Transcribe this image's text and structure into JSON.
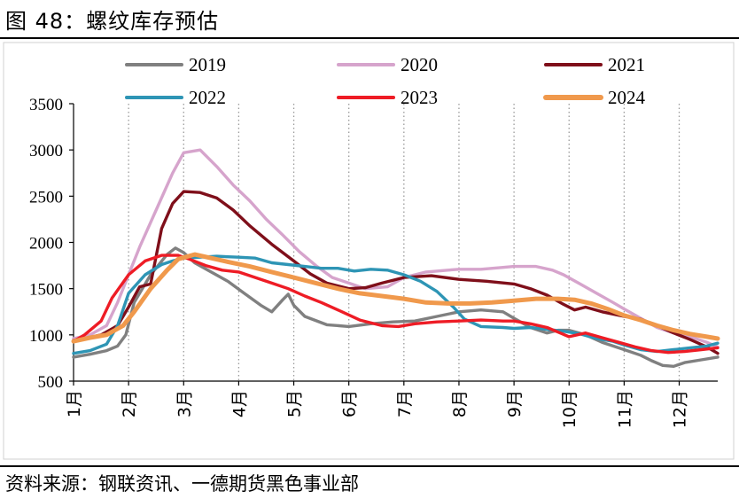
{
  "header": {
    "title": "图 48：螺纹库存预估"
  },
  "footer": {
    "source": "资料来源：钢联资讯、一德期货黑色事业部"
  },
  "chart_data": {
    "type": "line",
    "title": "螺纹库存预估",
    "xlabel": "",
    "ylabel": "",
    "ylim": [
      500,
      3500
    ],
    "yticks": [
      500,
      1000,
      1500,
      2000,
      2500,
      3000,
      3500
    ],
    "xlim": [
      1,
      12.7
    ],
    "xticks": [
      1,
      2,
      3,
      4,
      5,
      6,
      7,
      8,
      9,
      10,
      11,
      12
    ],
    "month_labels": [
      "1月",
      "2月",
      "3月",
      "4月",
      "5月",
      "6月",
      "7月",
      "8月",
      "9月",
      "10月",
      "11月",
      "12月"
    ],
    "grid": "vertical-dotted",
    "legend": "top",
    "series": [
      {
        "name": "2019",
        "color": "#808080",
        "x": [
          1.0,
          1.3,
          1.6,
          1.8,
          1.95,
          2.1,
          2.4,
          2.7,
          2.85,
          3.0,
          3.2,
          3.5,
          3.8,
          4.1,
          4.4,
          4.6,
          4.8,
          4.9,
          5.0,
          5.2,
          5.6,
          6.0,
          6.4,
          6.8,
          7.2,
          7.6,
          8.0,
          8.4,
          8.8,
          9.0,
          9.3,
          9.6,
          9.8,
          10.0,
          10.3,
          10.6,
          11.0,
          11.3,
          11.5,
          11.7,
          11.9,
          12.1,
          12.4,
          12.7
        ],
        "y": [
          760,
          790,
          830,
          880,
          1000,
          1350,
          1650,
          1870,
          1940,
          1890,
          1780,
          1680,
          1580,
          1450,
          1320,
          1250,
          1380,
          1440,
          1320,
          1200,
          1110,
          1090,
          1120,
          1140,
          1150,
          1200,
          1250,
          1270,
          1250,
          1180,
          1080,
          1020,
          1050,
          1050,
          1000,
          920,
          840,
          780,
          720,
          670,
          660,
          700,
          730,
          760
        ]
      },
      {
        "name": "2020",
        "color": "#d6a4cc",
        "x": [
          1.0,
          1.3,
          1.6,
          1.8,
          2.0,
          2.2,
          2.5,
          2.8,
          3.0,
          3.3,
          3.6,
          3.9,
          4.2,
          4.5,
          4.8,
          5.1,
          5.4,
          5.7,
          6.0,
          6.3,
          6.7,
          7.0,
          7.4,
          7.8,
          8.0,
          8.4,
          8.8,
          9.0,
          9.4,
          9.7,
          9.9,
          10.2,
          10.5,
          10.8,
          11.0,
          11.3,
          11.6,
          11.9,
          12.2,
          12.5,
          12.7
        ],
        "y": [
          960,
          1000,
          1100,
          1350,
          1650,
          1950,
          2350,
          2750,
          2970,
          3000,
          2820,
          2620,
          2450,
          2250,
          2080,
          1900,
          1750,
          1620,
          1560,
          1500,
          1520,
          1620,
          1680,
          1700,
          1710,
          1710,
          1730,
          1740,
          1740,
          1700,
          1650,
          1550,
          1450,
          1350,
          1280,
          1180,
          1080,
          1020,
          980,
          920,
          870
        ]
      },
      {
        "name": "2021",
        "color": "#7f0f1a",
        "x": [
          1.0,
          1.2,
          1.5,
          1.8,
          2.0,
          2.2,
          2.4,
          2.6,
          2.8,
          3.0,
          3.3,
          3.6,
          3.9,
          4.2,
          4.6,
          5.0,
          5.3,
          5.6,
          6.0,
          6.3,
          6.6,
          7.0,
          7.5,
          8.0,
          8.5,
          9.0,
          9.3,
          9.6,
          9.9,
          10.1,
          10.3,
          10.6,
          11.0,
          11.3,
          11.6,
          11.9,
          12.2,
          12.5,
          12.7
        ],
        "y": [
          940,
          960,
          1000,
          1100,
          1300,
          1520,
          1550,
          2150,
          2420,
          2550,
          2540,
          2480,
          2350,
          2180,
          1980,
          1800,
          1660,
          1560,
          1500,
          1510,
          1560,
          1620,
          1640,
          1600,
          1580,
          1550,
          1500,
          1430,
          1330,
          1270,
          1300,
          1250,
          1200,
          1170,
          1100,
          1020,
          950,
          870,
          800
        ]
      },
      {
        "name": "2022",
        "color": "#2e95b5",
        "x": [
          1.0,
          1.3,
          1.6,
          1.8,
          2.0,
          2.3,
          2.6,
          2.8,
          3.0,
          3.3,
          3.6,
          4.0,
          4.3,
          4.6,
          4.9,
          5.2,
          5.5,
          5.8,
          6.1,
          6.4,
          6.7,
          7.0,
          7.3,
          7.6,
          7.9,
          8.1,
          8.4,
          8.8,
          9.0,
          9.3,
          9.6,
          9.9,
          10.2,
          10.5,
          10.8,
          11.0,
          11.3,
          11.6,
          11.9,
          12.2,
          12.5,
          12.7
        ],
        "y": [
          800,
          830,
          900,
          1100,
          1450,
          1650,
          1760,
          1800,
          1830,
          1840,
          1850,
          1840,
          1830,
          1780,
          1760,
          1740,
          1720,
          1720,
          1690,
          1710,
          1700,
          1650,
          1580,
          1470,
          1300,
          1170,
          1090,
          1080,
          1070,
          1080,
          1060,
          1040,
          1010,
          960,
          930,
          890,
          840,
          820,
          840,
          860,
          880,
          910
        ]
      },
      {
        "name": "2023",
        "color": "#ee1c25",
        "x": [
          1.0,
          1.2,
          1.5,
          1.7,
          2.0,
          2.3,
          2.6,
          2.9,
          3.1,
          3.4,
          3.7,
          4.0,
          4.3,
          4.6,
          4.9,
          5.2,
          5.5,
          5.8,
          6.2,
          6.6,
          6.9,
          7.2,
          7.6,
          8.0,
          8.4,
          8.8,
          9.0,
          9.3,
          9.6,
          9.8,
          10.0,
          10.3,
          10.6,
          10.9,
          11.2,
          11.5,
          11.8,
          12.1,
          12.4,
          12.7
        ],
        "y": [
          930,
          1000,
          1150,
          1400,
          1650,
          1800,
          1860,
          1860,
          1820,
          1750,
          1700,
          1680,
          1620,
          1560,
          1500,
          1420,
          1350,
          1270,
          1160,
          1100,
          1090,
          1120,
          1140,
          1150,
          1160,
          1150,
          1150,
          1120,
          1080,
          1030,
          980,
          1020,
          970,
          920,
          870,
          830,
          810,
          820,
          840,
          860
        ]
      },
      {
        "name": "2024",
        "color": "#f0994c",
        "x": [
          1.0,
          1.3,
          1.6,
          1.9,
          2.1,
          2.4,
          2.7,
          2.9,
          3.2,
          3.5,
          3.8,
          4.2,
          4.6,
          5.0,
          5.4,
          5.8,
          6.2,
          6.6,
          7.0,
          7.4,
          7.8,
          8.2,
          8.6,
          9.0,
          9.4,
          9.8,
          10.1,
          10.4,
          10.7,
          11.0,
          11.3,
          11.6,
          11.9,
          12.2,
          12.5,
          12.7
        ],
        "y": [
          930,
          970,
          1000,
          1100,
          1250,
          1500,
          1700,
          1820,
          1870,
          1830,
          1790,
          1740,
          1680,
          1620,
          1560,
          1500,
          1450,
          1420,
          1390,
          1350,
          1340,
          1340,
          1350,
          1370,
          1390,
          1390,
          1380,
          1340,
          1280,
          1210,
          1160,
          1100,
          1050,
          1010,
          980,
          960
        ]
      }
    ]
  }
}
